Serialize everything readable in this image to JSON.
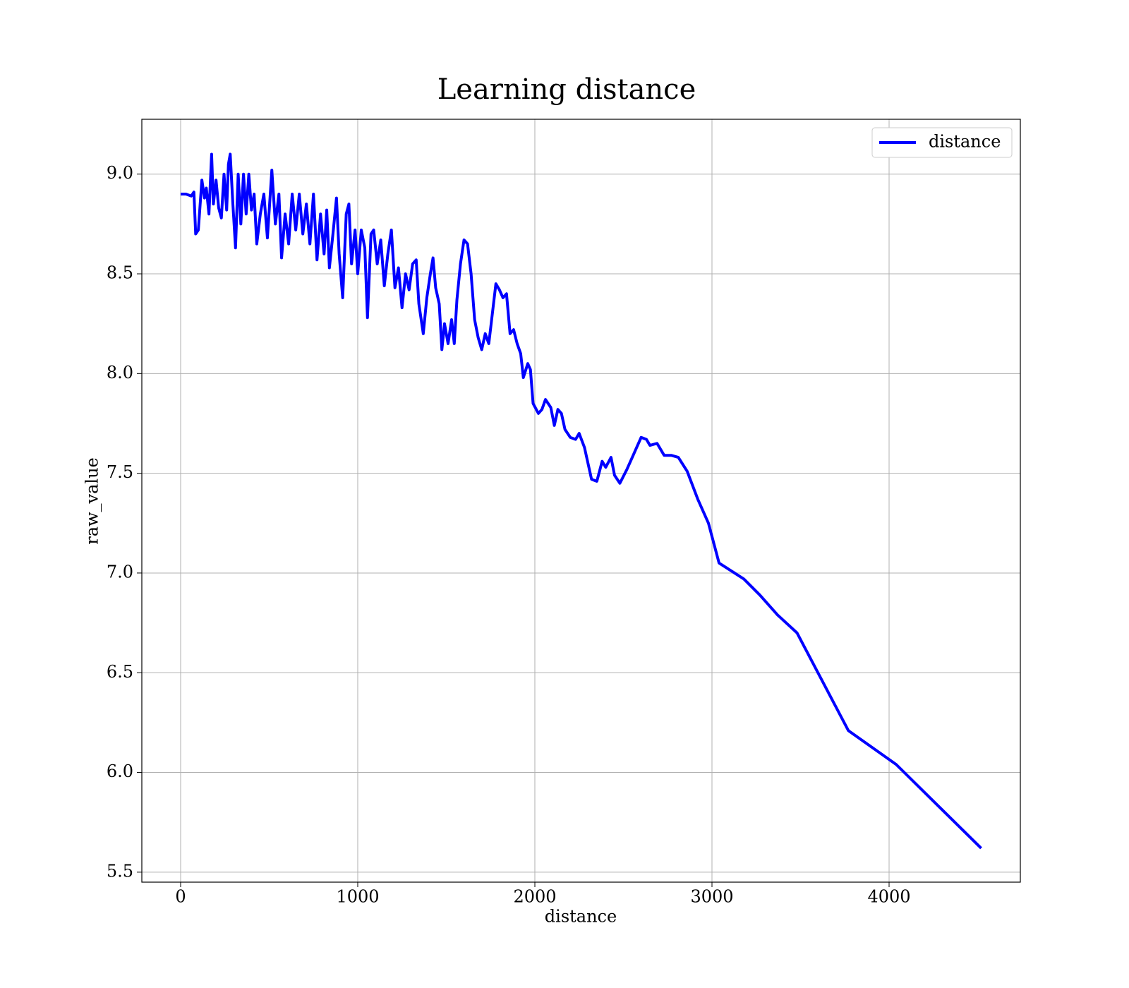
{
  "chart_data": {
    "type": "line",
    "title": "Learning distance",
    "xlabel": "distance",
    "ylabel": "raw_value",
    "x": [
      0,
      30,
      60,
      75,
      85,
      100,
      120,
      135,
      145,
      160,
      175,
      185,
      200,
      215,
      230,
      245,
      260,
      270,
      280,
      295,
      310,
      325,
      340,
      355,
      370,
      385,
      400,
      415,
      430,
      450,
      470,
      490,
      515,
      535,
      555,
      570,
      590,
      610,
      630,
      650,
      670,
      690,
      710,
      730,
      750,
      770,
      790,
      810,
      825,
      840,
      860,
      880,
      895,
      915,
      935,
      950,
      965,
      985,
      1000,
      1020,
      1040,
      1055,
      1075,
      1090,
      1110,
      1130,
      1150,
      1170,
      1190,
      1210,
      1230,
      1250,
      1270,
      1290,
      1310,
      1330,
      1345,
      1370,
      1390,
      1410,
      1425,
      1440,
      1460,
      1475,
      1490,
      1510,
      1530,
      1545,
      1560,
      1580,
      1600,
      1620,
      1640,
      1660,
      1680,
      1700,
      1720,
      1740,
      1760,
      1780,
      1800,
      1820,
      1840,
      1860,
      1880,
      1900,
      1920,
      1935,
      1960,
      1975,
      1990,
      2020,
      2040,
      2060,
      2090,
      2110,
      2130,
      2150,
      2170,
      2200,
      2230,
      2250,
      2280,
      2320,
      2350,
      2380,
      2400,
      2430,
      2450,
      2480,
      2520,
      2560,
      2600,
      2630,
      2650,
      2690,
      2730,
      2770,
      2810,
      2860,
      2920,
      2980,
      3040,
      3180,
      3270,
      3370,
      3480,
      3770,
      4040,
      4520
    ],
    "series": [
      {
        "name": "distance",
        "color": "#0000ff",
        "values": [
          8.9,
          8.9,
          8.89,
          8.91,
          8.7,
          8.72,
          8.97,
          8.88,
          8.93,
          8.8,
          9.1,
          8.85,
          8.97,
          8.83,
          8.78,
          9.0,
          8.82,
          9.05,
          9.1,
          8.85,
          8.63,
          9.0,
          8.75,
          9.0,
          8.8,
          9.0,
          8.82,
          8.9,
          8.65,
          8.8,
          8.9,
          8.68,
          9.02,
          8.75,
          8.9,
          8.58,
          8.8,
          8.65,
          8.9,
          8.72,
          8.9,
          8.7,
          8.85,
          8.65,
          8.9,
          8.57,
          8.8,
          8.6,
          8.82,
          8.53,
          8.7,
          8.88,
          8.6,
          8.38,
          8.8,
          8.85,
          8.55,
          8.72,
          8.5,
          8.72,
          8.63,
          8.28,
          8.7,
          8.72,
          8.55,
          8.67,
          8.44,
          8.6,
          8.72,
          8.43,
          8.53,
          8.33,
          8.5,
          8.42,
          8.55,
          8.57,
          8.35,
          8.2,
          8.38,
          8.5,
          8.58,
          8.43,
          8.35,
          8.12,
          8.25,
          8.15,
          8.27,
          8.15,
          8.37,
          8.55,
          8.67,
          8.65,
          8.5,
          8.27,
          8.18,
          8.12,
          8.2,
          8.15,
          8.3,
          8.45,
          8.42,
          8.38,
          8.4,
          8.2,
          8.22,
          8.15,
          8.1,
          7.98,
          8.05,
          8.02,
          7.85,
          7.8,
          7.82,
          7.87,
          7.83,
          7.74,
          7.82,
          7.8,
          7.72,
          7.68,
          7.67,
          7.7,
          7.63,
          7.47,
          7.46,
          7.56,
          7.53,
          7.58,
          7.49,
          7.45,
          7.52,
          7.6,
          7.68,
          7.67,
          7.64,
          7.65,
          7.59,
          7.59,
          7.58,
          7.51,
          7.37,
          7.25,
          7.05,
          6.97,
          6.89,
          6.79,
          6.7,
          6.21,
          6.04,
          5.62
        ]
      }
    ],
    "xlim": [
      -219,
      4741
    ],
    "ylim": [
      5.45,
      9.275
    ],
    "xticks": [
      0,
      1000,
      2000,
      3000,
      4000
    ],
    "yticks": [
      5.5,
      {
        "value": 6,
        "label": "6.0"
      },
      6.5,
      {
        "value": 7,
        "label": "7.0"
      },
      7.5,
      {
        "value": 8,
        "label": "8.0"
      },
      8.5,
      {
        "value": 9,
        "label": "9.0"
      }
    ],
    "grid": true,
    "legend": "upper right"
  }
}
